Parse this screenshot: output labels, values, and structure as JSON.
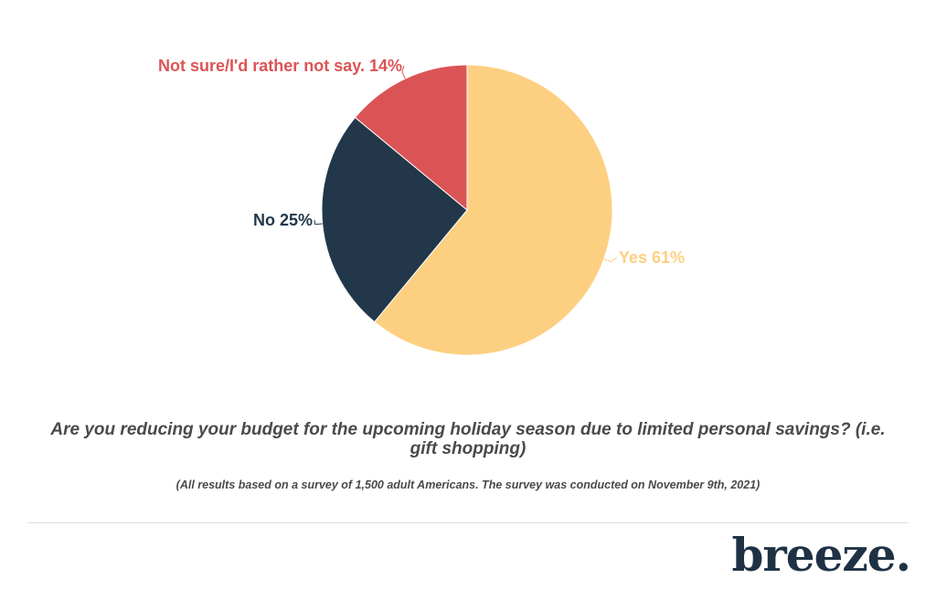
{
  "chart_data": {
    "type": "pie",
    "slices": [
      {
        "label": "Yes 61%",
        "name": "Yes",
        "value": 61,
        "color": "#fdcf81"
      },
      {
        "label": "No 25%",
        "name": "No",
        "value": 25,
        "color": "#22374a"
      },
      {
        "label": "Not sure/I'd rather not say. 14%",
        "name": "Not sure/I'd rather not say.",
        "value": 14,
        "color": "#db5455"
      }
    ],
    "start": "12 o'clock",
    "direction": "clockwise"
  },
  "caption": {
    "question": "Are you reducing your budget for the upcoming holiday season due to limited personal savings? (i.e. gift shopping)",
    "note": "(All results based on a survey of 1,500 adult Americans. The survey was conducted on November 9th, 2021)"
  },
  "brand": {
    "logo_text": "breeze.",
    "color": "#1f3245"
  }
}
